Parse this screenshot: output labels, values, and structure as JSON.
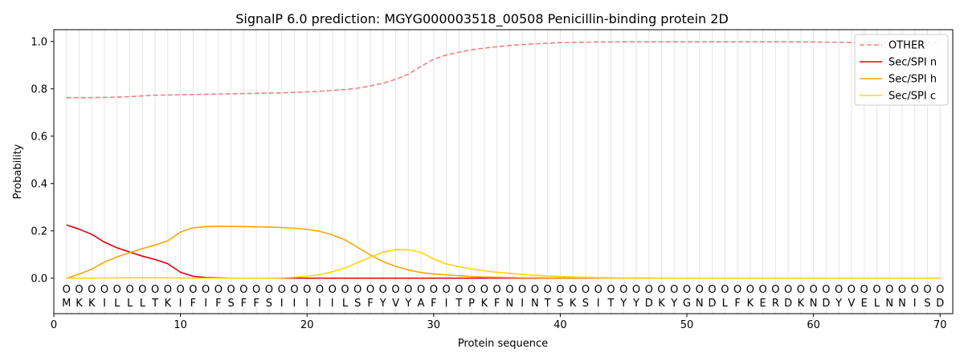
{
  "chart_data": {
    "type": "line",
    "title": "SignalP 6.0 prediction: MGYG000003518_00508 Penicillin-binding protein 2D",
    "xlabel": "Protein sequence",
    "ylabel": "Probability",
    "xlim": [
      0,
      71
    ],
    "ylim": [
      -0.15,
      1.05
    ],
    "xticks": [
      0,
      10,
      20,
      30,
      40,
      50,
      60,
      70
    ],
    "yticks": [
      0.0,
      0.2,
      0.4,
      0.6,
      0.8,
      1.0
    ],
    "ytick_labels": [
      "0.0",
      "0.2",
      "0.4",
      "0.6",
      "0.8",
      "1.0"
    ],
    "grid": "vertical lines at each residue",
    "legend_position": "top-right",
    "sequence": [
      "M",
      "K",
      "K",
      "I",
      "L",
      "L",
      "L",
      "T",
      "K",
      "I",
      "F",
      "I",
      "F",
      "S",
      "F",
      "F",
      "S",
      "I",
      "I",
      "I",
      "I",
      "I",
      "L",
      "S",
      "F",
      "Y",
      "V",
      "Y",
      "A",
      "F",
      "I",
      "T",
      "P",
      "K",
      "F",
      "N",
      "I",
      "N",
      "T",
      "S",
      "K",
      "S",
      "I",
      "T",
      "Y",
      "Y",
      "D",
      "K",
      "Y",
      "G",
      "N",
      "D",
      "L",
      "F",
      "K",
      "E",
      "R",
      "D",
      "K",
      "N",
      "D",
      "Y",
      "V",
      "E",
      "L",
      "N",
      "N",
      "I",
      "S",
      "D"
    ],
    "residue_marker": "O",
    "series": [
      {
        "name": "OTHER",
        "color": "#f08080",
        "style": "dashed",
        "values": [
          0.763,
          0.763,
          0.763,
          0.764,
          0.765,
          0.767,
          0.77,
          0.773,
          0.774,
          0.775,
          0.776,
          0.777,
          0.778,
          0.779,
          0.78,
          0.781,
          0.782,
          0.783,
          0.785,
          0.787,
          0.79,
          0.793,
          0.797,
          0.803,
          0.812,
          0.824,
          0.84,
          0.862,
          0.895,
          0.925,
          0.943,
          0.955,
          0.965,
          0.972,
          0.978,
          0.983,
          0.987,
          0.99,
          0.993,
          0.995,
          0.996,
          0.997,
          0.998,
          0.998,
          0.999,
          0.999,
          0.999,
          0.999,
          0.999,
          0.999,
          0.999,
          0.999,
          0.999,
          0.999,
          0.999,
          0.999,
          0.999,
          0.999,
          0.998,
          0.998,
          0.997,
          0.997,
          0.996,
          0.996,
          0.996,
          0.996,
          0.996,
          0.996,
          0.996,
          0.996
        ]
      },
      {
        "name": "Sec/SPI n",
        "color": "#e8000b",
        "style": "solid",
        "values": [
          0.225,
          0.207,
          0.185,
          0.152,
          0.128,
          0.11,
          0.093,
          0.079,
          0.061,
          0.025,
          0.008,
          0.003,
          0.001,
          0.0,
          0.0,
          0.0,
          0.0,
          0.0,
          0.0,
          0.0,
          0.0,
          0.0,
          0.0,
          0.0,
          0.0,
          0.0,
          0.0,
          0.0,
          0.0,
          0.0,
          0.0,
          0.0,
          0.0,
          0.0,
          0.0,
          0.0,
          0.0,
          0.0,
          0.0,
          0.0,
          0.0,
          0.0,
          0.0,
          0.0,
          0.0,
          0.0,
          0.0,
          0.0,
          0.0,
          0.0,
          0.0,
          0.0,
          0.0,
          0.0,
          0.0,
          0.0,
          0.0,
          0.0,
          0.0,
          0.0,
          0.0,
          0.0,
          0.0,
          0.0,
          0.0,
          0.0,
          0.0,
          0.0,
          0.0,
          0.0
        ]
      },
      {
        "name": "Sec/SPI h",
        "color": "#ffa500",
        "style": "solid",
        "values": [
          0.0,
          0.017,
          0.038,
          0.068,
          0.09,
          0.108,
          0.125,
          0.14,
          0.158,
          0.195,
          0.213,
          0.218,
          0.219,
          0.219,
          0.218,
          0.217,
          0.216,
          0.214,
          0.211,
          0.206,
          0.198,
          0.183,
          0.162,
          0.13,
          0.098,
          0.07,
          0.05,
          0.034,
          0.024,
          0.018,
          0.014,
          0.01,
          0.007,
          0.005,
          0.004,
          0.003,
          0.002,
          0.002,
          0.001,
          0.001,
          0.001,
          0.001,
          0.0,
          0.0,
          0.0,
          0.0,
          0.0,
          0.0,
          0.0,
          0.0,
          0.0,
          0.0,
          0.0,
          0.0,
          0.0,
          0.0,
          0.0,
          0.0,
          0.0,
          0.0,
          0.0,
          0.0,
          0.0,
          0.0,
          0.0,
          0.0,
          0.0,
          0.0,
          0.0,
          0.0
        ]
      },
      {
        "name": "Sec/SPI c",
        "color": "#ffd700",
        "style": "solid",
        "values": [
          0.0,
          0.0,
          0.0,
          0.001,
          0.001,
          0.002,
          0.002,
          0.002,
          0.001,
          0.001,
          0.0,
          0.0,
          0.0,
          0.0,
          0.0,
          0.0,
          0.0,
          0.001,
          0.004,
          0.008,
          0.015,
          0.027,
          0.043,
          0.066,
          0.089,
          0.11,
          0.121,
          0.12,
          0.109,
          0.081,
          0.06,
          0.048,
          0.039,
          0.031,
          0.025,
          0.02,
          0.016,
          0.012,
          0.009,
          0.007,
          0.005,
          0.004,
          0.003,
          0.002,
          0.001,
          0.001,
          0.001,
          0.0,
          0.0,
          0.0,
          0.0,
          0.0,
          0.0,
          0.0,
          0.0,
          0.0,
          0.0,
          0.0,
          0.0,
          0.0,
          0.0,
          0.0,
          0.0,
          0.0,
          0.0,
          0.0,
          0.0,
          0.0,
          0.0,
          0.0
        ]
      }
    ]
  }
}
